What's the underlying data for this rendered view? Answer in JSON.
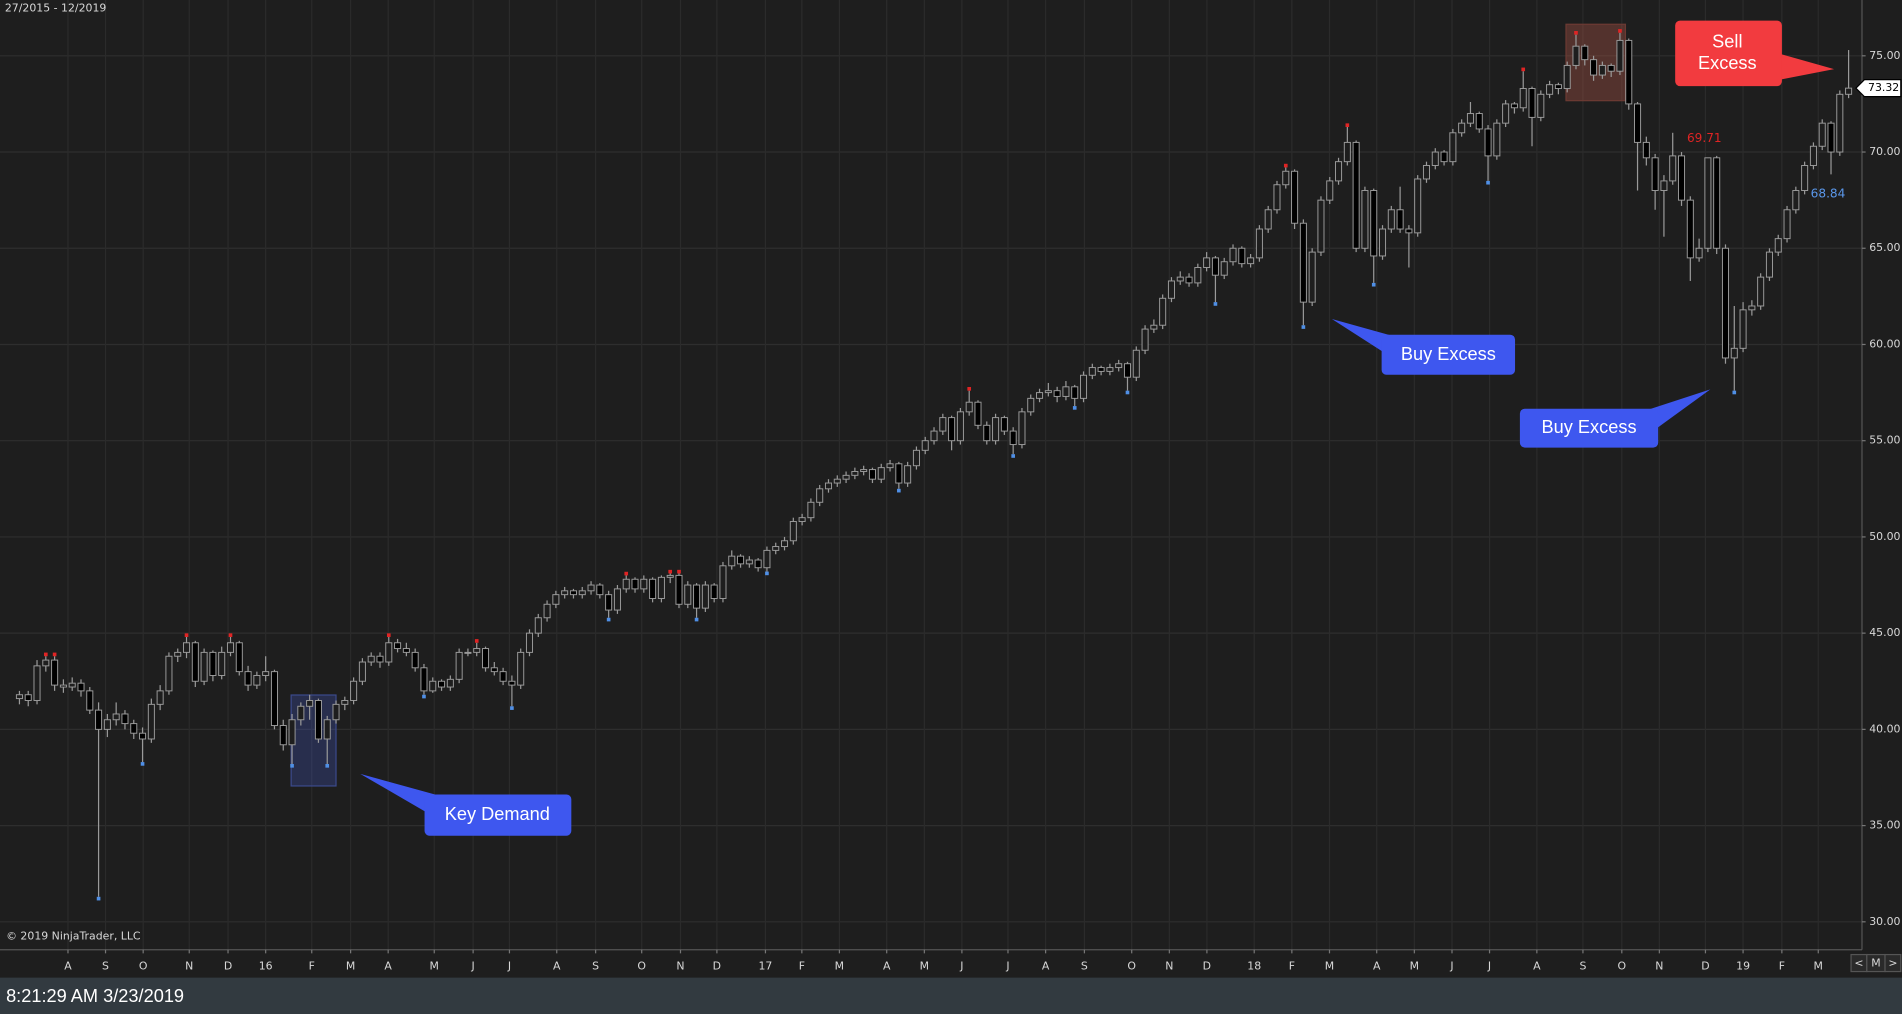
{
  "chart_data": {
    "type": "candlestick",
    "title": "27/2015 - 12/2019",
    "copyright": "© 2019 NinjaTrader, LLC",
    "navigation": [
      "<",
      "M",
      ">"
    ],
    "annotations": [
      {
        "text": "Key Demand"
      },
      {
        "text": "Buy Excess"
      },
      {
        "text": "Buy Excess"
      },
      {
        "lines": [
          "Sell",
          "Excess"
        ]
      }
    ],
    "up_color": "#1e1e1e",
    "down_color": "#000000",
    "wick_color": "#9a9a9a",
    "high_marker_color": "#e02424",
    "low_marker_color": "#4f8fe6",
    "grid": true,
    "xlim": [
      -2.21,
      209.52
    ],
    "ylim": [
      28.55,
      77.9
    ],
    "xticks": [
      {
        "value": 5.52,
        "label": "A"
      },
      {
        "value": 9.79,
        "label": "S"
      },
      {
        "value": 14.07,
        "label": "O"
      },
      {
        "value": 19.31,
        "label": "N"
      },
      {
        "value": 23.72,
        "label": "D"
      },
      {
        "value": 28.0,
        "label": "16"
      },
      {
        "value": 33.24,
        "label": "F"
      },
      {
        "value": 37.66,
        "label": "M"
      },
      {
        "value": 41.93,
        "label": "A"
      },
      {
        "value": 47.17,
        "label": "M"
      },
      {
        "value": 51.59,
        "label": "J"
      },
      {
        "value": 55.72,
        "label": "J"
      },
      {
        "value": 61.1,
        "label": "A"
      },
      {
        "value": 65.52,
        "label": "S"
      },
      {
        "value": 70.76,
        "label": "O"
      },
      {
        "value": 75.17,
        "label": "N"
      },
      {
        "value": 79.31,
        "label": "D"
      },
      {
        "value": 84.83,
        "label": "17"
      },
      {
        "value": 88.97,
        "label": "F"
      },
      {
        "value": 93.24,
        "label": "M"
      },
      {
        "value": 98.62,
        "label": "A"
      },
      {
        "value": 102.9,
        "label": "M"
      },
      {
        "value": 107.17,
        "label": "J"
      },
      {
        "value": 112.41,
        "label": "J"
      },
      {
        "value": 116.69,
        "label": "A"
      },
      {
        "value": 121.1,
        "label": "S"
      },
      {
        "value": 126.48,
        "label": "O"
      },
      {
        "value": 130.76,
        "label": "N"
      },
      {
        "value": 135.03,
        "label": "D"
      },
      {
        "value": 140.41,
        "label": "18"
      },
      {
        "value": 144.69,
        "label": "F"
      },
      {
        "value": 148.97,
        "label": "M"
      },
      {
        "value": 154.34,
        "label": "A"
      },
      {
        "value": 158.62,
        "label": "M"
      },
      {
        "value": 162.9,
        "label": "J"
      },
      {
        "value": 167.17,
        "label": "J"
      },
      {
        "value": 172.55,
        "label": "A"
      },
      {
        "value": 177.79,
        "label": "S"
      },
      {
        "value": 182.21,
        "label": "O"
      },
      {
        "value": 186.48,
        "label": "N"
      },
      {
        "value": 191.72,
        "label": "D"
      },
      {
        "value": 196.0,
        "label": "19"
      },
      {
        "value": 200.41,
        "label": "F"
      },
      {
        "value": 204.55,
        "label": "M"
      }
    ],
    "yticks": [
      {
        "value": 30,
        "label": "30.00"
      },
      {
        "value": 35,
        "label": "35.00"
      },
      {
        "value": 40,
        "label": "40.00"
      },
      {
        "value": 45,
        "label": "45.00"
      },
      {
        "value": 50,
        "label": "50.00"
      },
      {
        "value": 55,
        "label": "55.00"
      },
      {
        "value": 60,
        "label": "60.00"
      },
      {
        "value": 65,
        "label": "65.00"
      },
      {
        "value": 70,
        "label": "70.00"
      },
      {
        "value": 75,
        "label": "75.00"
      }
    ],
    "candles": [
      [
        41.6,
        42.0,
        41.3,
        41.8
      ],
      [
        41.8,
        42.0,
        41.2,
        41.5
      ],
      [
        41.5,
        43.6,
        41.3,
        43.3
      ],
      [
        43.3,
        43.8,
        43.0,
        43.6
      ],
      [
        43.6,
        43.8,
        42.0,
        42.3
      ],
      [
        42.3,
        42.6,
        41.9,
        42.2
      ],
      [
        42.2,
        42.7,
        42.0,
        42.4
      ],
      [
        42.4,
        42.6,
        41.7,
        42.0
      ],
      [
        42.0,
        42.2,
        40.8,
        41.0
      ],
      [
        41.0,
        41.4,
        31.3,
        40.0
      ],
      [
        40.0,
        40.8,
        39.6,
        40.5
      ],
      [
        40.5,
        41.4,
        40.2,
        40.8
      ],
      [
        40.8,
        41.0,
        40.0,
        40.3
      ],
      [
        40.3,
        40.5,
        39.5,
        39.8
      ],
      [
        39.8,
        40.1,
        38.3,
        39.5
      ],
      [
        39.5,
        41.6,
        39.3,
        41.3
      ],
      [
        41.3,
        42.3,
        41.0,
        42.0
      ],
      [
        42.0,
        44.0,
        41.8,
        43.8
      ],
      [
        43.8,
        44.2,
        43.5,
        44.0
      ],
      [
        44.0,
        44.8,
        43.7,
        44.5
      ],
      [
        44.5,
        44.6,
        42.2,
        42.5
      ],
      [
        42.5,
        44.2,
        42.3,
        44.0
      ],
      [
        44.0,
        44.1,
        42.5,
        42.8
      ],
      [
        42.8,
        44.3,
        42.6,
        44.0
      ],
      [
        44.0,
        44.8,
        43.8,
        44.5
      ],
      [
        44.5,
        44.6,
        42.8,
        43.0
      ],
      [
        43.0,
        43.3,
        42.0,
        42.3
      ],
      [
        42.3,
        43.0,
        42.1,
        42.8
      ],
      [
        42.8,
        43.8,
        42.5,
        43.0
      ],
      [
        43.0,
        43.1,
        40.0,
        40.2
      ],
      [
        40.2,
        40.5,
        38.9,
        39.2
      ],
      [
        39.2,
        40.8,
        38.2,
        40.5
      ],
      [
        40.5,
        41.4,
        40.2,
        41.2
      ],
      [
        41.2,
        41.8,
        40.5,
        41.5
      ],
      [
        41.5,
        41.6,
        39.3,
        39.5
      ],
      [
        39.5,
        40.7,
        38.2,
        40.5
      ],
      [
        40.5,
        41.5,
        40.3,
        41.3
      ],
      [
        41.3,
        41.7,
        41.0,
        41.5
      ],
      [
        41.5,
        42.7,
        41.3,
        42.5
      ],
      [
        42.5,
        43.7,
        42.3,
        43.5
      ],
      [
        43.5,
        44.0,
        43.3,
        43.8
      ],
      [
        43.8,
        44.0,
        43.2,
        43.5
      ],
      [
        43.5,
        44.8,
        43.3,
        44.5
      ],
      [
        44.5,
        44.7,
        44.0,
        44.2
      ],
      [
        44.2,
        44.5,
        43.8,
        44.0
      ],
      [
        44.0,
        44.2,
        43.0,
        43.2
      ],
      [
        43.2,
        43.4,
        41.8,
        42.0
      ],
      [
        42.0,
        42.7,
        41.9,
        42.5
      ],
      [
        42.5,
        42.6,
        42.0,
        42.2
      ],
      [
        42.2,
        42.8,
        42.0,
        42.6
      ],
      [
        42.6,
        44.2,
        42.4,
        44.0
      ],
      [
        44.0,
        44.2,
        43.8,
        44.0
      ],
      [
        44.0,
        44.5,
        43.8,
        44.2
      ],
      [
        44.2,
        44.3,
        43.0,
        43.2
      ],
      [
        43.2,
        43.5,
        42.8,
        43.0
      ],
      [
        43.0,
        43.2,
        42.3,
        42.5
      ],
      [
        42.5,
        42.8,
        41.2,
        42.3
      ],
      [
        42.3,
        44.2,
        42.1,
        44.0
      ],
      [
        44.0,
        45.2,
        43.8,
        45.0
      ],
      [
        45.0,
        46.0,
        44.8,
        45.8
      ],
      [
        45.8,
        46.7,
        45.6,
        46.5
      ],
      [
        46.5,
        47.2,
        46.3,
        47.0
      ],
      [
        47.0,
        47.4,
        46.8,
        47.2
      ],
      [
        47.2,
        47.3,
        46.8,
        47.0
      ],
      [
        47.0,
        47.4,
        46.8,
        47.2
      ],
      [
        47.2,
        47.7,
        47.0,
        47.5
      ],
      [
        47.5,
        47.6,
        46.8,
        47.0
      ],
      [
        47.0,
        47.2,
        45.8,
        46.2
      ],
      [
        46.2,
        47.5,
        46.0,
        47.3
      ],
      [
        47.3,
        48.0,
        47.1,
        47.8
      ],
      [
        47.8,
        47.9,
        47.1,
        47.3
      ],
      [
        47.3,
        48.0,
        47.1,
        47.8
      ],
      [
        47.8,
        47.9,
        46.6,
        46.8
      ],
      [
        46.8,
        48.0,
        46.6,
        47.9
      ],
      [
        47.9,
        48.1,
        47.6,
        48.0
      ],
      [
        48.0,
        48.1,
        46.3,
        46.5
      ],
      [
        46.5,
        47.7,
        46.3,
        47.5
      ],
      [
        47.5,
        47.6,
        45.8,
        46.3
      ],
      [
        46.3,
        47.7,
        46.1,
        47.5
      ],
      [
        47.5,
        47.6,
        46.6,
        46.8
      ],
      [
        46.8,
        48.7,
        46.6,
        48.5
      ],
      [
        48.5,
        49.3,
        48.3,
        49.0
      ],
      [
        49.0,
        49.1,
        48.4,
        48.6
      ],
      [
        48.6,
        49.0,
        48.4,
        48.8
      ],
      [
        48.8,
        48.9,
        48.2,
        48.4
      ],
      [
        48.4,
        49.5,
        48.2,
        49.3
      ],
      [
        49.3,
        49.7,
        49.1,
        49.5
      ],
      [
        49.5,
        50.0,
        49.3,
        49.8
      ],
      [
        49.8,
        51.0,
        49.6,
        50.8
      ],
      [
        50.8,
        51.2,
        50.6,
        51.0
      ],
      [
        51.0,
        52.0,
        50.8,
        51.8
      ],
      [
        51.8,
        52.7,
        51.6,
        52.5
      ],
      [
        52.5,
        53.0,
        52.3,
        52.8
      ],
      [
        52.8,
        53.2,
        52.6,
        53.0
      ],
      [
        53.0,
        53.4,
        52.8,
        53.2
      ],
      [
        53.2,
        53.6,
        53.0,
        53.4
      ],
      [
        53.4,
        53.7,
        53.2,
        53.5
      ],
      [
        53.5,
        53.6,
        52.8,
        53.0
      ],
      [
        53.0,
        53.8,
        52.8,
        53.6
      ],
      [
        53.6,
        54.0,
        53.4,
        53.8
      ],
      [
        53.8,
        53.9,
        52.5,
        52.8
      ],
      [
        52.8,
        53.9,
        52.6,
        53.7
      ],
      [
        53.7,
        54.7,
        53.5,
        54.5
      ],
      [
        54.5,
        55.2,
        54.3,
        55.0
      ],
      [
        55.0,
        55.7,
        54.8,
        55.5
      ],
      [
        55.5,
        56.4,
        55.3,
        56.2
      ],
      [
        56.2,
        56.3,
        54.5,
        55.0
      ],
      [
        55.0,
        56.7,
        54.8,
        56.5
      ],
      [
        56.5,
        57.6,
        56.3,
        57.0
      ],
      [
        57.0,
        57.1,
        55.6,
        55.8
      ],
      [
        55.8,
        56.0,
        54.8,
        55.0
      ],
      [
        55.0,
        56.4,
        54.8,
        56.2
      ],
      [
        56.2,
        56.3,
        55.3,
        55.5
      ],
      [
        55.5,
        55.7,
        54.3,
        54.8
      ],
      [
        54.8,
        56.7,
        54.6,
        56.5
      ],
      [
        56.5,
        57.4,
        56.3,
        57.2
      ],
      [
        57.2,
        57.7,
        57.0,
        57.5
      ],
      [
        57.5,
        58.0,
        57.3,
        57.6
      ],
      [
        57.6,
        57.8,
        57.0,
        57.3
      ],
      [
        57.3,
        58.1,
        57.1,
        57.8
      ],
      [
        57.8,
        57.9,
        56.8,
        57.2
      ],
      [
        57.2,
        58.6,
        57.0,
        58.4
      ],
      [
        58.4,
        59.0,
        58.2,
        58.8
      ],
      [
        58.8,
        58.9,
        58.4,
        58.6
      ],
      [
        58.6,
        59.0,
        58.4,
        58.8
      ],
      [
        58.8,
        59.2,
        58.6,
        59.0
      ],
      [
        59.0,
        59.1,
        57.6,
        58.3
      ],
      [
        58.3,
        59.9,
        58.1,
        59.7
      ],
      [
        59.7,
        61.0,
        59.5,
        60.8
      ],
      [
        60.8,
        61.3,
        60.6,
        61.0
      ],
      [
        61.0,
        62.6,
        60.8,
        62.4
      ],
      [
        62.4,
        63.5,
        62.2,
        63.3
      ],
      [
        63.3,
        63.8,
        63.1,
        63.5
      ],
      [
        63.5,
        63.7,
        63.0,
        63.2
      ],
      [
        63.2,
        64.2,
        63.0,
        64.0
      ],
      [
        64.0,
        64.8,
        63.8,
        64.5
      ],
      [
        64.5,
        64.6,
        62.2,
        63.6
      ],
      [
        63.6,
        64.5,
        63.4,
        64.3
      ],
      [
        64.3,
        65.2,
        64.1,
        65.0
      ],
      [
        65.0,
        65.1,
        64.0,
        64.2
      ],
      [
        64.2,
        64.7,
        64.0,
        64.5
      ],
      [
        64.5,
        66.2,
        64.3,
        66.0
      ],
      [
        66.0,
        67.2,
        65.8,
        67.0
      ],
      [
        67.0,
        68.5,
        66.8,
        68.3
      ],
      [
        68.3,
        69.2,
        68.1,
        69.0
      ],
      [
        69.0,
        69.1,
        66.0,
        66.3
      ],
      [
        66.3,
        66.5,
        61.0,
        62.2
      ],
      [
        62.2,
        65.0,
        62.0,
        64.8
      ],
      [
        64.8,
        67.7,
        64.6,
        67.5
      ],
      [
        67.5,
        68.7,
        67.3,
        68.5
      ],
      [
        68.5,
        69.7,
        68.3,
        69.5
      ],
      [
        69.5,
        71.3,
        69.3,
        70.5
      ],
      [
        70.5,
        70.6,
        64.8,
        65.0
      ],
      [
        65.0,
        68.2,
        64.8,
        68.0
      ],
      [
        68.0,
        68.1,
        63.2,
        64.6
      ],
      [
        64.6,
        66.2,
        64.4,
        66.0
      ],
      [
        66.0,
        67.2,
        65.8,
        67.0
      ],
      [
        67.0,
        68.2,
        65.8,
        66.0
      ],
      [
        66.0,
        66.2,
        64.0,
        65.8
      ],
      [
        65.8,
        68.8,
        65.6,
        68.6
      ],
      [
        68.6,
        69.5,
        68.4,
        69.3
      ],
      [
        69.3,
        70.2,
        69.1,
        70.0
      ],
      [
        70.0,
        70.1,
        69.3,
        69.5
      ],
      [
        69.5,
        71.2,
        69.3,
        71.0
      ],
      [
        71.0,
        71.7,
        70.8,
        71.5
      ],
      [
        71.5,
        72.6,
        71.3,
        72.0
      ],
      [
        72.0,
        72.1,
        71.0,
        71.2
      ],
      [
        71.2,
        71.4,
        68.5,
        69.8
      ],
      [
        69.8,
        71.7,
        69.6,
        71.5
      ],
      [
        71.5,
        72.7,
        71.3,
        72.5
      ],
      [
        72.5,
        72.6,
        72.0,
        72.3
      ],
      [
        72.3,
        74.2,
        72.1,
        73.3
      ],
      [
        73.3,
        73.4,
        70.3,
        71.8
      ],
      [
        71.8,
        73.2,
        71.6,
        73.0
      ],
      [
        73.0,
        73.7,
        72.8,
        73.5
      ],
      [
        73.5,
        73.6,
        73.0,
        73.3
      ],
      [
        73.3,
        74.7,
        73.1,
        74.5
      ],
      [
        74.5,
        76.1,
        74.3,
        75.5
      ],
      [
        75.5,
        75.6,
        74.5,
        74.8
      ],
      [
        74.8,
        75.0,
        73.7,
        74.0
      ],
      [
        74.0,
        74.7,
        73.8,
        74.5
      ],
      [
        74.5,
        74.6,
        73.9,
        74.2
      ],
      [
        74.2,
        76.2,
        74.0,
        75.8
      ],
      [
        75.8,
        75.9,
        72.2,
        72.5
      ],
      [
        72.5,
        72.6,
        68.0,
        70.5
      ],
      [
        70.5,
        70.8,
        69.3,
        69.7
      ],
      [
        69.7,
        69.9,
        67.0,
        68.0
      ],
      [
        68.0,
        68.8,
        65.6,
        68.5
      ],
      [
        68.5,
        71.0,
        68.3,
        69.8
      ],
      [
        69.8,
        70.0,
        67.2,
        67.5
      ],
      [
        67.5,
        67.7,
        63.3,
        64.5
      ],
      [
        64.5,
        65.5,
        64.3,
        65.0
      ],
      [
        65.0,
        69.71,
        64.8,
        69.7
      ],
      [
        69.7,
        69.8,
        64.7,
        65.0
      ],
      [
        65.0,
        65.2,
        59.0,
        59.3
      ],
      [
        59.3,
        62.0,
        57.6,
        59.8
      ],
      [
        59.8,
        62.2,
        59.6,
        61.8
      ],
      [
        61.8,
        62.3,
        61.5,
        62.0
      ],
      [
        62.0,
        63.7,
        61.8,
        63.5
      ],
      [
        63.5,
        65.0,
        63.3,
        64.8
      ],
      [
        64.8,
        65.7,
        64.6,
        65.5
      ],
      [
        65.5,
        67.2,
        65.3,
        67.0
      ],
      [
        67.0,
        68.2,
        66.8,
        68.0
      ],
      [
        68.0,
        69.5,
        67.8,
        69.3
      ],
      [
        69.3,
        70.5,
        69.1,
        70.3
      ],
      [
        70.3,
        71.7,
        70.1,
        71.5
      ],
      [
        71.5,
        71.6,
        68.84,
        70.0
      ],
      [
        70.0,
        73.2,
        69.8,
        73.0
      ],
      [
        73.0,
        75.3,
        72.8,
        73.32
      ]
    ]
  },
  "status_bar": {
    "time": "8:21:29 AM 3/23/2019"
  }
}
